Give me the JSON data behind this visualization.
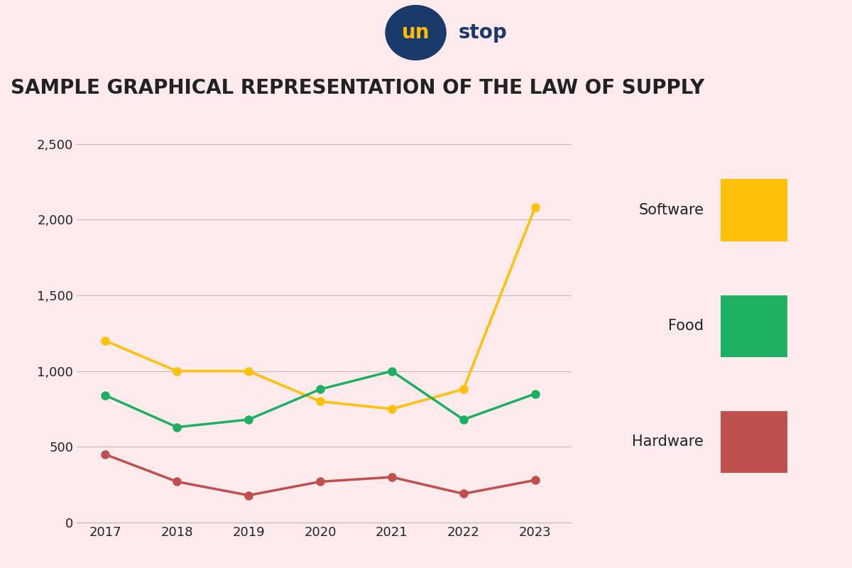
{
  "title": "SAMPLE GRAPHICAL REPRESENTATION OF THE LAW OF SUPPLY",
  "header_bg_color": "#FFBB00",
  "chart_bg_color": "#FDEAEC",
  "years": [
    2017,
    2018,
    2019,
    2020,
    2021,
    2022,
    2023
  ],
  "software": [
    1200,
    1000,
    1000,
    800,
    750,
    880,
    2080
  ],
  "food": [
    840,
    630,
    680,
    880,
    1000,
    680,
    850
  ],
  "hardware": [
    450,
    270,
    180,
    270,
    300,
    190,
    280
  ],
  "software_color": "#FFC107",
  "food_color": "#1DAF62",
  "hardware_color": "#C0504D",
  "ylim": [
    0,
    2700
  ],
  "yticks": [
    0,
    500,
    1000,
    1500,
    2000,
    2500
  ],
  "ytick_labels": [
    "0",
    "500",
    "1,000",
    "1,500",
    "2,000",
    "2,500"
  ],
  "legend_labels": [
    "Software",
    "Food",
    "Hardware"
  ],
  "legend_colors": [
    "#FFC107",
    "#1DAF62",
    "#C0504D"
  ],
  "title_fontsize": 20,
  "tick_fontsize": 13,
  "legend_fontsize": 15,
  "line_width": 2.5,
  "marker_size": 8,
  "grid_color": "#BBBBBB",
  "text_color": "#222222",
  "logo_bg_color": "#1A3A6B",
  "logo_text_color": "#FFBB00",
  "logo_word_color": "#1A3A6B"
}
